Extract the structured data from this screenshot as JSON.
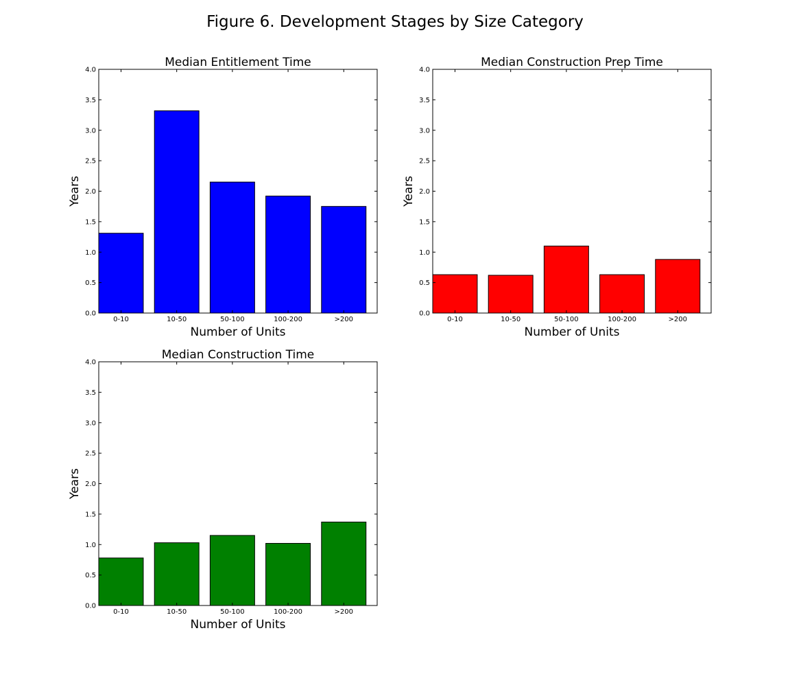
{
  "figure_title": "Figure 6. Development Stages by Size Category",
  "chart_data": [
    {
      "type": "bar",
      "title": "Median Entitlement Time",
      "xlabel": "Number of Units",
      "ylabel": "Years",
      "categories": [
        "0-10",
        "10-50",
        "50-100",
        "100-200",
        ">200"
      ],
      "values": [
        1.31,
        3.32,
        2.15,
        1.92,
        1.75
      ],
      "ylim": [
        0,
        4.0
      ],
      "yticks": [
        "0.0",
        "0.5",
        "1.0",
        "1.5",
        "2.0",
        "2.5",
        "3.0",
        "3.5",
        "4.0"
      ],
      "color": "#0000ff",
      "grid": false
    },
    {
      "type": "bar",
      "title": "Median Construction Prep Time",
      "xlabel": "Number of Units",
      "ylabel": "Years",
      "categories": [
        "0-10",
        "10-50",
        "50-100",
        "100-200",
        ">200"
      ],
      "values": [
        0.63,
        0.62,
        1.1,
        0.63,
        0.88
      ],
      "ylim": [
        0,
        4.0
      ],
      "yticks": [
        "0.0",
        "0.5",
        "1.0",
        "1.5",
        "2.0",
        "2.5",
        "3.0",
        "3.5",
        "4.0"
      ],
      "color": "#ff0000",
      "grid": false
    },
    {
      "type": "bar",
      "title": "Median Construction  Time",
      "xlabel": "Number of Units",
      "ylabel": "Years",
      "categories": [
        "0-10",
        "10-50",
        "50-100",
        "100-200",
        ">200"
      ],
      "values": [
        0.78,
        1.03,
        1.15,
        1.02,
        1.37
      ],
      "ylim": [
        0,
        4.0
      ],
      "yticks": [
        "0.0",
        "0.5",
        "1.0",
        "1.5",
        "2.0",
        "2.5",
        "3.0",
        "3.5",
        "4.0"
      ],
      "color": "#008000",
      "grid": false
    }
  ]
}
